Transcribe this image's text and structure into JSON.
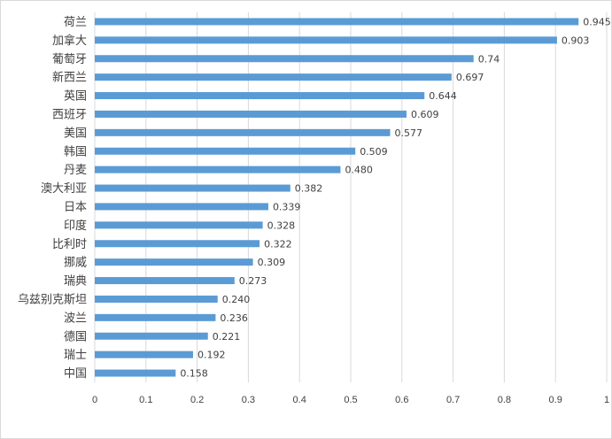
{
  "chart_data": {
    "type": "bar",
    "orientation": "horizontal",
    "categories": [
      "荷兰",
      "加拿大",
      "葡萄牙",
      "新西兰",
      "英国",
      "西班牙",
      "美国",
      "韩国",
      "丹麦",
      "澳大利亚",
      "日本",
      "印度",
      "比利时",
      "挪威",
      "瑞典",
      "乌兹别克斯坦",
      "波兰",
      "德国",
      "瑞士",
      "中国"
    ],
    "values": [
      0.945,
      0.903,
      0.74,
      0.697,
      0.644,
      0.609,
      0.577,
      0.509,
      0.48,
      0.382,
      0.339,
      0.328,
      0.322,
      0.309,
      0.273,
      0.24,
      0.236,
      0.221,
      0.192,
      0.158
    ],
    "value_labels": [
      "0.945",
      "0.903",
      "0.74",
      "0.697",
      "0.644",
      "0.609",
      "0.577",
      "0.509",
      "0.480",
      "0.382",
      "0.339",
      "0.328",
      "0.322",
      "0.309",
      "0.273",
      "0.240",
      "0.236",
      "0.221",
      "0.192",
      "0.158"
    ],
    "xlim": [
      0,
      1
    ],
    "x_ticks": [
      "0",
      "0.1",
      "0.2",
      "0.3",
      "0.4",
      "0.5",
      "0.6",
      "0.7",
      "0.8",
      "0.9",
      "1"
    ],
    "grid": "vertical",
    "legend": "none",
    "bar_color": "#5B9BD5",
    "grid_color": "#d9d9d9",
    "text_color": "#404040"
  }
}
